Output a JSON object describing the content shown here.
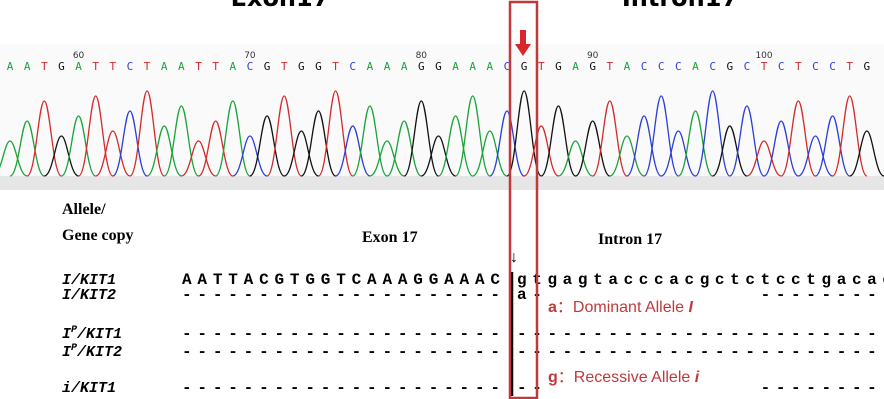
{
  "header": {
    "left": "Exon17",
    "right": "Intron17"
  },
  "chromatogram": {
    "bases": [
      "A",
      "A",
      "T",
      "G",
      "A",
      "T",
      "T",
      "C",
      "T",
      "A",
      "A",
      "T",
      "T",
      "A",
      "C",
      "G",
      "T",
      "G",
      "G",
      "T",
      "C",
      "A",
      "A",
      "A",
      "G",
      "G",
      "A",
      "A",
      "A",
      "C",
      "G",
      "T",
      "G",
      "A",
      "G",
      "T",
      "A",
      "C",
      "C",
      "C",
      "A",
      "C",
      "G",
      "C",
      "T",
      "C",
      "T",
      "C",
      "C",
      "T",
      "G"
    ],
    "positions": [
      60,
      70,
      80,
      90,
      100
    ]
  },
  "table": {
    "column_headers": {
      "allele_line1": "Allele/",
      "allele_line2": "Gene copy",
      "exon": "Exon 17",
      "intron": "Intron 17"
    },
    "junction_arrow": "↓",
    "rows": [
      {
        "allele": "I",
        "gene": "/KIT1",
        "exon": "AATTACGTGGTCAAAGGAAAC",
        "intron": "gtgagtacccacgctctcctgacac"
      },
      {
        "allele": "I",
        "gene": "/KIT2",
        "exon": "---------------------",
        "intron": "a------------------------"
      },
      {
        "allele": "I",
        "sup": "P",
        "gene": "/KIT1",
        "exon": "---------------------",
        "intron": "-------------------------"
      },
      {
        "allele": "I",
        "sup": "P",
        "gene": "/KIT2",
        "exon": "---------------------",
        "intron": "-------------------------"
      },
      {
        "allele": "i",
        "gene": "/KIT1",
        "exon": "---------------------",
        "intron": "-------------------------"
      }
    ]
  },
  "annotations": [
    {
      "letter": "a",
      "text": "：Dominant Allele ",
      "symbol": "I"
    },
    {
      "letter": "g",
      "text": "：Recessive Allele ",
      "symbol": "i"
    }
  ]
}
